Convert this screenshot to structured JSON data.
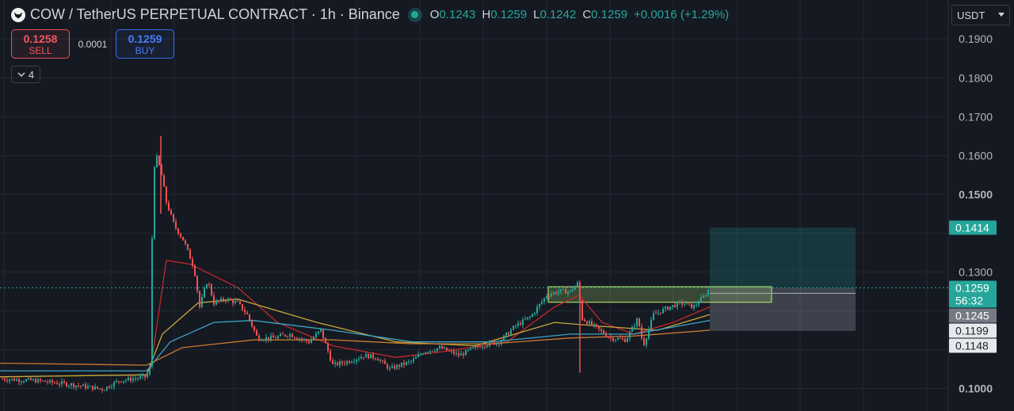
{
  "header": {
    "title": "COW / TetherUS PERPETUAL CONTRACT · 1h · Binance",
    "logo_icon": "cow-logo-icon",
    "ohlc": [
      {
        "key": "O",
        "value": "0.1243"
      },
      {
        "key": "H",
        "value": "0.1259"
      },
      {
        "key": "L",
        "value": "0.1242"
      },
      {
        "key": "C",
        "value": "0.1259"
      }
    ],
    "change": "+0.0016 (+1.29%)"
  },
  "trade": {
    "sell_price": "0.1258",
    "sell_label": "SELL",
    "spread": "0.0001",
    "buy_price": "0.1259",
    "buy_label": "BUY"
  },
  "indicators": {
    "collapsed_count": "4"
  },
  "currency": {
    "label": "USDT"
  },
  "colors": {
    "background": "#151922",
    "up": "#26a69a",
    "down": "#ef5350",
    "ema_red": "#c62828",
    "ema_yellow": "#c9a83a",
    "ema_blue": "#3aa4c4",
    "ema_orange": "#c97a2e",
    "zone_green": "#a5d66a"
  },
  "chart_data": {
    "type": "candlestick",
    "y_axis": {
      "ticks": [
        "0.1000",
        "0.1300",
        "0.1500",
        "0.1600",
        "0.1700",
        "0.1800",
        "0.1900"
      ],
      "bold_ticks": [
        "0.1000",
        "0.1500"
      ],
      "ylim": [
        0.096,
        0.195
      ]
    },
    "price_labels": [
      {
        "value": "0.1414",
        "bg": "#26a69a",
        "fg": "#ffffff"
      },
      {
        "value": "0.1259",
        "bg": "#26a69a",
        "fg": "#ffffff",
        "sub": "56:32"
      },
      {
        "value": "0.1245",
        "bg": "#757a85",
        "fg": "#ffffff"
      },
      {
        "value": "0.1199",
        "bg": "#e6e8ec",
        "fg": "#1e222d"
      },
      {
        "value": "0.1148",
        "bg": "#e6e8ec",
        "fg": "#1e222d"
      }
    ],
    "last_price": 0.1259,
    "close_path": [
      [
        0,
        0.1025
      ],
      [
        45,
        0.102
      ],
      [
        90,
        0.101
      ],
      [
        130,
        0.0998
      ],
      [
        150,
        0.102
      ],
      [
        185,
        0.103
      ],
      [
        190,
        0.106
      ],
      [
        193,
        0.155
      ],
      [
        197,
        0.16
      ],
      [
        203,
        0.156
      ],
      [
        210,
        0.148
      ],
      [
        220,
        0.142
      ],
      [
        232,
        0.138
      ],
      [
        245,
        0.131
      ],
      [
        252,
        0.121
      ],
      [
        262,
        0.128
      ],
      [
        270,
        0.122
      ],
      [
        285,
        0.123
      ],
      [
        300,
        0.122
      ],
      [
        312,
        0.119
      ],
      [
        325,
        0.113
      ],
      [
        345,
        0.113
      ],
      [
        365,
        0.114
      ],
      [
        390,
        0.112
      ],
      [
        405,
        0.115
      ],
      [
        420,
        0.106
      ],
      [
        440,
        0.107
      ],
      [
        460,
        0.1085
      ],
      [
        475,
        0.108
      ],
      [
        492,
        0.105
      ],
      [
        505,
        0.106
      ],
      [
        520,
        0.107
      ],
      [
        535,
        0.1095
      ],
      [
        555,
        0.1105
      ],
      [
        580,
        0.1085
      ],
      [
        605,
        0.111
      ],
      [
        630,
        0.112
      ],
      [
        650,
        0.116
      ],
      [
        670,
        0.1185
      ],
      [
        690,
        0.124
      ],
      [
        705,
        0.125
      ],
      [
        720,
        0.125
      ],
      [
        729,
        0.127
      ],
      [
        735,
        0.118
      ],
      [
        750,
        0.116
      ],
      [
        770,
        0.113
      ],
      [
        790,
        0.1125
      ],
      [
        805,
        0.118
      ],
      [
        812,
        0.111
      ],
      [
        825,
        0.119
      ],
      [
        845,
        0.121
      ],
      [
        860,
        0.122
      ],
      [
        875,
        0.121
      ],
      [
        888,
        0.1235
      ],
      [
        896,
        0.1259
      ]
    ],
    "wicks": [
      {
        "x": 732,
        "high": 0.127,
        "low": 0.104
      },
      {
        "x": 203,
        "high": 0.165,
        "low": 0.145
      }
    ],
    "ema_series": [
      {
        "color": "#c62828",
        "points": [
          [
            190,
            0.105
          ],
          [
            210,
            0.133
          ],
          [
            240,
            0.132
          ],
          [
            300,
            0.126
          ],
          [
            350,
            0.117
          ],
          [
            420,
            0.111
          ],
          [
            500,
            0.108
          ],
          [
            560,
            0.1095
          ],
          [
            640,
            0.112
          ],
          [
            700,
            0.121
          ],
          [
            731,
            0.124
          ],
          [
            760,
            0.117
          ],
          [
            800,
            0.114
          ],
          [
            850,
            0.117
          ],
          [
            896,
            0.121
          ]
        ]
      },
      {
        "color": "#c9a83a",
        "points": [
          [
            0,
            0.103
          ],
          [
            185,
            0.1035
          ],
          [
            205,
            0.114
          ],
          [
            250,
            0.122
          ],
          [
            300,
            0.123
          ],
          [
            400,
            0.117
          ],
          [
            500,
            0.112
          ],
          [
            600,
            0.111
          ],
          [
            700,
            0.117
          ],
          [
            760,
            0.116
          ],
          [
            830,
            0.115
          ],
          [
            896,
            0.119
          ]
        ]
      },
      {
        "color": "#3aa4c4",
        "points": [
          [
            0,
            0.1045
          ],
          [
            185,
            0.1045
          ],
          [
            215,
            0.112
          ],
          [
            270,
            0.117
          ],
          [
            320,
            0.1175
          ],
          [
            420,
            0.115
          ],
          [
            520,
            0.112
          ],
          [
            620,
            0.112
          ],
          [
            720,
            0.114
          ],
          [
            800,
            0.114
          ],
          [
            896,
            0.1175
          ]
        ]
      },
      {
        "color": "#c97a2e",
        "points": [
          [
            0,
            0.1065
          ],
          [
            185,
            0.106
          ],
          [
            230,
            0.1105
          ],
          [
            320,
            0.1125
          ],
          [
            420,
            0.1125
          ],
          [
            520,
            0.1115
          ],
          [
            620,
            0.1115
          ],
          [
            720,
            0.113
          ],
          [
            800,
            0.1135
          ],
          [
            896,
            0.115
          ]
        ]
      }
    ],
    "zones": [
      {
        "kind": "target",
        "x0": 896,
        "x1": 1080,
        "top": 0.1414,
        "bottom": 0.1259,
        "fill": "#26a69a",
        "opacity": 0.22
      },
      {
        "kind": "stop",
        "x0": 896,
        "x1": 1080,
        "top": 0.1259,
        "bottom": 0.1148,
        "fill": "#9aa0ab",
        "opacity": 0.3
      },
      {
        "kind": "range",
        "x0": 692,
        "x1": 974,
        "top": 0.1262,
        "bottom": 0.1222,
        "stroke": "#a5d66a",
        "opacity": 0.25
      }
    ]
  }
}
